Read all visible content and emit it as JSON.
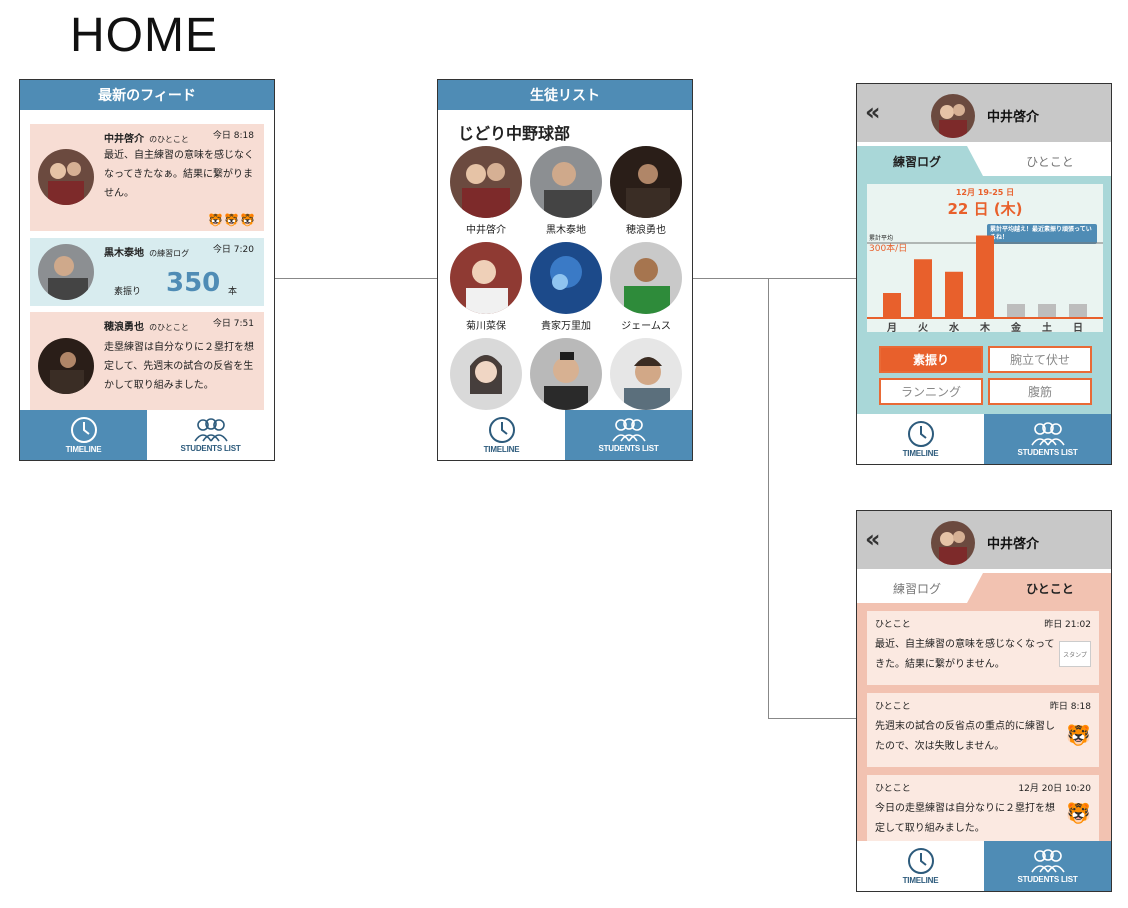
{
  "page_title": "HOME",
  "tabs": {
    "timeline": "TIMELINE",
    "students": "STUDENTS LIST"
  },
  "feed": {
    "header": "最新のフィード",
    "cards": [
      {
        "name": "中井啓介",
        "sub": "のひとこと",
        "time": "今日 8:18",
        "body": "最近、自主練習の意味を感じなくなってきたなぁ。結果に繋がりません。",
        "stamp": "🐯🐯🐯"
      },
      {
        "name": "黒木泰地",
        "sub": "の練習ログ",
        "time": "今日 7:20",
        "label": "素振り",
        "value": "350",
        "unit": "本"
      },
      {
        "name": "穂浪勇也",
        "sub": "のひとこと",
        "time": "今日 7:51",
        "body": "走塁練習は自分なりに２塁打を想定して、先週末の試合の反省を生かして取り組みました。"
      }
    ]
  },
  "students": {
    "header": "生徒リスト",
    "club": "じどり中野球部",
    "list": [
      "中井啓介",
      "黒木泰地",
      "穂浪勇也",
      "菊川菜保",
      "貴家万里加",
      "ジェームス",
      "",
      "",
      ""
    ]
  },
  "detail": {
    "back": "«",
    "name": "中井啓介",
    "tab_log": "練習ログ",
    "tab_word": "ひとこと",
    "week": "12月 19-25 日",
    "date": "22 日 (木)",
    "avg_label": "累計平均",
    "avg_value": "300本/日",
    "callout": "累計平均越え！最近素振り頑張っているね！",
    "exercises": [
      "素振り",
      "腕立て伏せ",
      "ランニング",
      "腹筋"
    ],
    "colors": {
      "accent": "#e8602c",
      "teal": "#a9d7d8",
      "blue": "#4f8cb5",
      "pink": "#f2c2b1"
    }
  },
  "chart_data": {
    "type": "bar",
    "categories": [
      "月",
      "火",
      "水",
      "木",
      "金",
      "土",
      "日"
    ],
    "values": [
      100,
      235,
      185,
      330,
      0,
      0,
      0
    ],
    "reference_line": 300,
    "ylim": [
      0,
      400
    ],
    "highlight": "木"
  },
  "hitokoto": [
    {
      "label": "ひとこと",
      "time": "昨日 21:02",
      "body": "最近、自主練習の意味を感じなくなってきた。結果に繋がりません。",
      "stamp": "スタンプ"
    },
    {
      "label": "ひとこと",
      "time": "昨日 8:18",
      "body": "先週末の試合の反省点の重点的に練習したので、次は失敗しません。"
    },
    {
      "label": "ひとこと",
      "time": "12月 20日 10:20",
      "body": "今日の走塁練習は自分なりに２塁打を想定して取り組みました。"
    }
  ]
}
